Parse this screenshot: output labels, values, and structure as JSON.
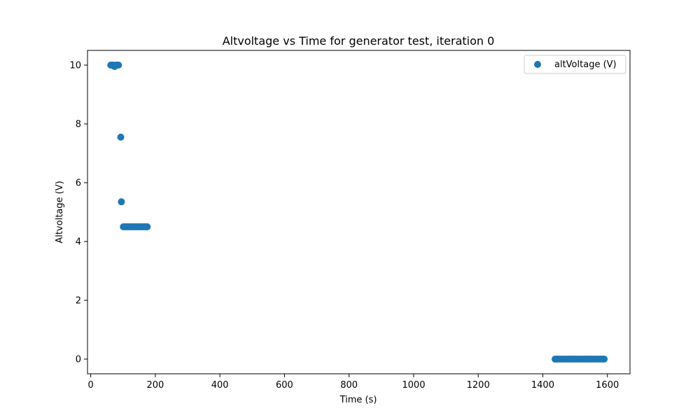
{
  "chart_data": {
    "type": "scatter",
    "title": "Altvoltage vs Time for generator test, iteration 0",
    "xlabel": "Time (s)",
    "ylabel": "Altvoltage (V)",
    "xlim": [
      -10,
      1670
    ],
    "ylim": [
      -0.5,
      10.5
    ],
    "xticks": [
      0,
      200,
      400,
      600,
      800,
      1000,
      1200,
      1400,
      1600
    ],
    "yticks": [
      0,
      2,
      4,
      6,
      8,
      10
    ],
    "grid": false,
    "legend": "top-right",
    "series": [
      {
        "name": "altVoltage (V)",
        "color": "#1f77b4",
        "points": [
          [
            62,
            10.0
          ],
          [
            66,
            10.0
          ],
          [
            70,
            10.0
          ],
          [
            74,
            9.95
          ],
          [
            78,
            10.0
          ],
          [
            82,
            10.0
          ],
          [
            86,
            10.0
          ],
          [
            93,
            7.55
          ],
          [
            95,
            5.35
          ],
          [
            101,
            4.5
          ],
          [
            106,
            4.5
          ],
          [
            111,
            4.5
          ],
          [
            116,
            4.5
          ],
          [
            121,
            4.5
          ],
          [
            126,
            4.5
          ],
          [
            131,
            4.5
          ],
          [
            136,
            4.5
          ],
          [
            141,
            4.5
          ],
          [
            146,
            4.5
          ],
          [
            151,
            4.5
          ],
          [
            156,
            4.5
          ],
          [
            161,
            4.5
          ],
          [
            166,
            4.5
          ],
          [
            171,
            4.5
          ],
          [
            175,
            4.5
          ],
          [
            1438,
            0.0
          ],
          [
            1445,
            0.0
          ],
          [
            1452,
            0.0
          ],
          [
            1459,
            0.0
          ],
          [
            1466,
            0.0
          ],
          [
            1473,
            0.0
          ],
          [
            1480,
            0.0
          ],
          [
            1487,
            0.0
          ],
          [
            1494,
            0.0
          ],
          [
            1501,
            0.0
          ],
          [
            1508,
            0.0
          ],
          [
            1515,
            0.0
          ],
          [
            1522,
            0.0
          ],
          [
            1529,
            0.0
          ],
          [
            1536,
            0.0
          ],
          [
            1543,
            0.0
          ],
          [
            1550,
            0.0
          ],
          [
            1557,
            0.0
          ],
          [
            1564,
            0.0
          ],
          [
            1571,
            0.0
          ],
          [
            1578,
            0.0
          ],
          [
            1585,
            0.0
          ],
          [
            1590,
            0.0
          ]
        ]
      }
    ]
  }
}
